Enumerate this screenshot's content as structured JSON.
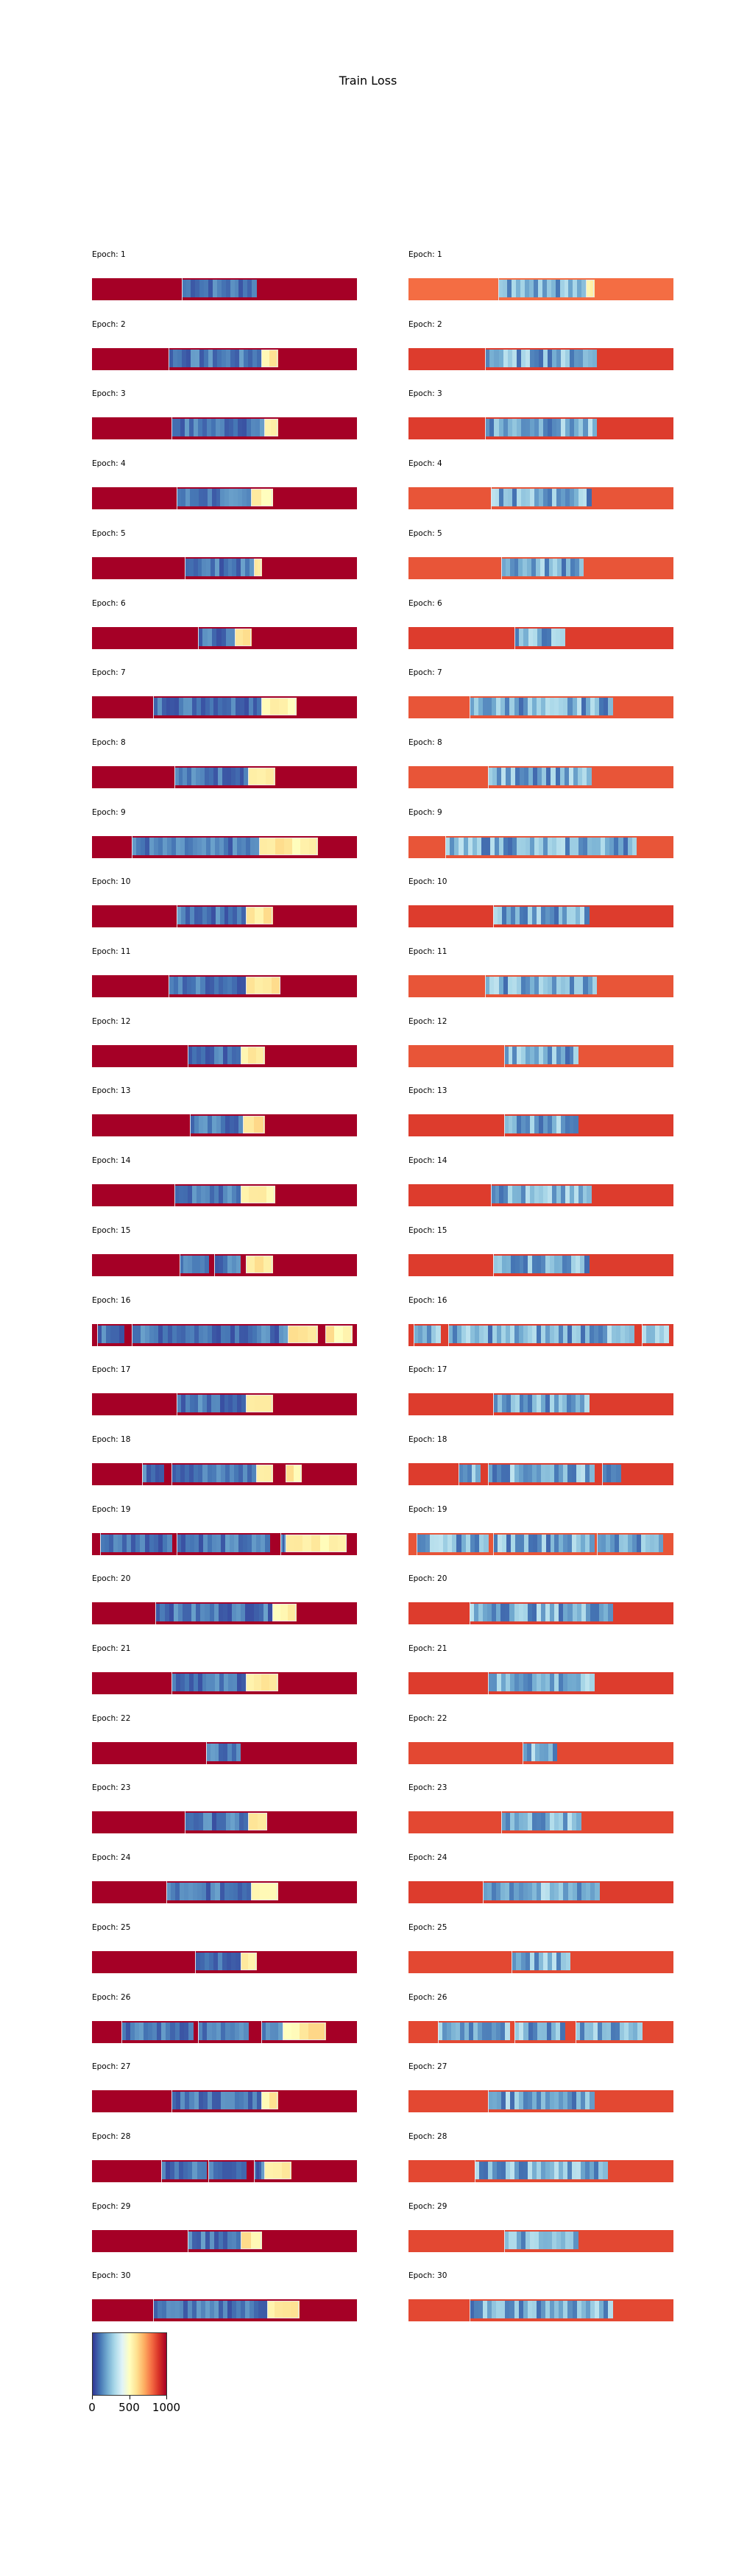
{
  "chart_data": {
    "type": "heatmap",
    "title": "Train Loss",
    "epoch_prefix": "Epoch: ",
    "epochs": [
      1,
      2,
      3,
      4,
      5,
      6,
      7,
      8,
      9,
      10,
      11,
      12,
      13,
      14,
      15,
      16,
      17,
      18,
      19,
      20,
      21,
      22,
      23,
      24,
      25,
      26,
      27,
      28,
      29,
      30
    ],
    "colormap": "RdYlBu_r",
    "colorbar": {
      "ticks": [
        0,
        500,
        1000
      ],
      "labels": [
        "0",
        "500",
        "1000"
      ],
      "range": [
        0,
        1000
      ]
    },
    "panels": [
      {
        "epochs": [
          {
            "epoch": 1,
            "background": 1000,
            "segments": [
              [
                0.34,
                0.62
              ]
            ],
            "high_segments": []
          },
          {
            "epoch": 2,
            "background": 1000,
            "segments": [
              [
                0.29,
                0.64
              ]
            ],
            "high_segments": [
              [
                0.64,
                0.7
              ]
            ]
          },
          {
            "epoch": 3,
            "background": 1000,
            "segments": [
              [
                0.3,
                0.65
              ]
            ],
            "high_segments": [
              [
                0.65,
                0.7
              ]
            ]
          },
          {
            "epoch": 4,
            "background": 1000,
            "segments": [
              [
                0.32,
                0.6
              ]
            ],
            "high_segments": [
              [
                0.6,
                0.68
              ]
            ]
          },
          {
            "epoch": 5,
            "background": 1000,
            "segments": [
              [
                0.35,
                0.61
              ]
            ],
            "high_segments": [
              [
                0.61,
                0.64
              ]
            ]
          },
          {
            "epoch": 6,
            "background": 1000,
            "segments": [
              [
                0.4,
                0.54
              ]
            ],
            "high_segments": [
              [
                0.54,
                0.6
              ]
            ]
          },
          {
            "epoch": 7,
            "background": 1000,
            "segments": [
              [
                0.23,
                0.64
              ]
            ],
            "high_segments": [
              [
                0.64,
                0.77
              ]
            ]
          },
          {
            "epoch": 8,
            "background": 1000,
            "segments": [
              [
                0.31,
                0.59
              ]
            ],
            "high_segments": [
              [
                0.59,
                0.69
              ]
            ]
          },
          {
            "epoch": 9,
            "background": 1000,
            "segments": [
              [
                0.15,
                0.63
              ]
            ],
            "high_segments": [
              [
                0.63,
                0.85
              ]
            ]
          },
          {
            "epoch": 10,
            "background": 1000,
            "segments": [
              [
                0.32,
                0.58
              ]
            ],
            "high_segments": [
              [
                0.58,
                0.68
              ]
            ]
          },
          {
            "epoch": 11,
            "background": 1000,
            "segments": [
              [
                0.29,
                0.58
              ]
            ],
            "high_segments": [
              [
                0.58,
                0.71
              ]
            ]
          },
          {
            "epoch": 12,
            "background": 1000,
            "segments": [
              [
                0.36,
                0.56
              ]
            ],
            "high_segments": [
              [
                0.56,
                0.65
              ]
            ]
          },
          {
            "epoch": 13,
            "background": 1000,
            "segments": [
              [
                0.37,
                0.57
              ]
            ],
            "high_segments": [
              [
                0.57,
                0.65
              ]
            ]
          },
          {
            "epoch": 14,
            "background": 1000,
            "segments": [
              [
                0.31,
                0.56
              ]
            ],
            "high_segments": [
              [
                0.56,
                0.69
              ]
            ]
          },
          {
            "epoch": 15,
            "background": 1000,
            "segments": [
              [
                0.33,
                0.44
              ],
              [
                0.46,
                0.56
              ]
            ],
            "high_segments": [
              [
                0.58,
                0.68
              ]
            ]
          },
          {
            "epoch": 16,
            "background": 1000,
            "segments": [
              [
                0.02,
                0.12
              ],
              [
                0.15,
                0.74
              ]
            ],
            "high_segments": [
              [
                0.74,
                0.85
              ],
              [
                0.88,
                0.98
              ]
            ]
          },
          {
            "epoch": 17,
            "background": 1000,
            "segments": [
              [
                0.32,
                0.58
              ]
            ],
            "high_segments": [
              [
                0.58,
                0.68
              ]
            ]
          },
          {
            "epoch": 18,
            "background": 1000,
            "segments": [
              [
                0.19,
                0.27
              ],
              [
                0.3,
                0.62
              ]
            ],
            "high_segments": [
              [
                0.62,
                0.68
              ],
              [
                0.73,
                0.79
              ]
            ]
          },
          {
            "epoch": 19,
            "background": 1000,
            "segments": [
              [
                0.03,
                0.3
              ],
              [
                0.32,
                0.67
              ],
              [
                0.71,
                0.73
              ]
            ],
            "high_segments": [
              [
                0.73,
                0.96
              ]
            ]
          },
          {
            "epoch": 20,
            "background": 1000,
            "segments": [
              [
                0.24,
                0.68
              ]
            ],
            "high_segments": [
              [
                0.68,
                0.77
              ]
            ]
          },
          {
            "epoch": 21,
            "background": 1000,
            "segments": [
              [
                0.3,
                0.58
              ]
            ],
            "high_segments": [
              [
                0.58,
                0.7
              ]
            ]
          },
          {
            "epoch": 22,
            "background": 1000,
            "segments": [
              [
                0.43,
                0.56
              ]
            ],
            "high_segments": []
          },
          {
            "epoch": 23,
            "background": 1000,
            "segments": [
              [
                0.35,
                0.59
              ]
            ],
            "high_segments": [
              [
                0.59,
                0.66
              ]
            ]
          },
          {
            "epoch": 24,
            "background": 1000,
            "segments": [
              [
                0.28,
                0.6
              ]
            ],
            "high_segments": [
              [
                0.6,
                0.7
              ]
            ]
          },
          {
            "epoch": 25,
            "background": 1000,
            "segments": [
              [
                0.39,
                0.56
              ]
            ],
            "high_segments": [
              [
                0.56,
                0.62
              ]
            ]
          },
          {
            "epoch": 26,
            "background": 1000,
            "segments": [
              [
                0.11,
                0.38
              ],
              [
                0.4,
                0.59
              ],
              [
                0.64,
                0.72
              ]
            ],
            "high_segments": [
              [
                0.72,
                0.88
              ]
            ]
          },
          {
            "epoch": 27,
            "background": 1000,
            "segments": [
              [
                0.3,
                0.64
              ]
            ],
            "high_segments": [
              [
                0.64,
                0.7
              ]
            ]
          },
          {
            "epoch": 28,
            "background": 1000,
            "segments": [
              [
                0.26,
                0.43
              ],
              [
                0.44,
                0.58
              ],
              [
                0.61,
                0.65
              ]
            ],
            "high_segments": [
              [
                0.65,
                0.75
              ]
            ]
          },
          {
            "epoch": 29,
            "background": 1000,
            "segments": [
              [
                0.36,
                0.56
              ]
            ],
            "high_segments": [
              [
                0.56,
                0.64
              ]
            ]
          },
          {
            "epoch": 30,
            "background": 1000,
            "segments": [
              [
                0.23,
                0.66
              ]
            ],
            "high_segments": [
              [
                0.66,
                0.78
              ]
            ]
          }
        ]
      },
      {
        "epochs": [
          {
            "epoch": 1,
            "background": 800,
            "segments": [
              [
                0.34,
                0.67
              ]
            ],
            "high_segments": [
              [
                0.67,
                0.7
              ]
            ]
          },
          {
            "epoch": 2,
            "background": 880,
            "segments": [
              [
                0.29,
                0.71
              ]
            ],
            "high_segments": []
          },
          {
            "epoch": 3,
            "background": 880,
            "segments": [
              [
                0.29,
                0.71
              ]
            ],
            "high_segments": []
          },
          {
            "epoch": 4,
            "background": 840,
            "segments": [
              [
                0.31,
                0.69
              ]
            ],
            "high_segments": []
          },
          {
            "epoch": 5,
            "background": 840,
            "segments": [
              [
                0.35,
                0.66
              ]
            ],
            "high_segments": []
          },
          {
            "epoch": 6,
            "background": 880,
            "segments": [
              [
                0.4,
                0.59
              ]
            ],
            "high_segments": []
          },
          {
            "epoch": 7,
            "background": 840,
            "segments": [
              [
                0.23,
                0.77
              ]
            ],
            "high_segments": []
          },
          {
            "epoch": 8,
            "background": 840,
            "segments": [
              [
                0.3,
                0.69
              ]
            ],
            "high_segments": []
          },
          {
            "epoch": 9,
            "background": 840,
            "segments": [
              [
                0.14,
                0.86
              ]
            ],
            "high_segments": []
          },
          {
            "epoch": 10,
            "background": 880,
            "segments": [
              [
                0.32,
                0.68
              ]
            ],
            "high_segments": []
          },
          {
            "epoch": 11,
            "background": 840,
            "segments": [
              [
                0.29,
                0.71
              ]
            ],
            "high_segments": []
          },
          {
            "epoch": 12,
            "background": 840,
            "segments": [
              [
                0.36,
                0.64
              ]
            ],
            "high_segments": []
          },
          {
            "epoch": 13,
            "background": 880,
            "segments": [
              [
                0.36,
                0.64
              ]
            ],
            "high_segments": []
          },
          {
            "epoch": 14,
            "background": 880,
            "segments": [
              [
                0.31,
                0.69
              ]
            ],
            "high_segments": []
          },
          {
            "epoch": 15,
            "background": 880,
            "segments": [
              [
                0.32,
                0.68
              ]
            ],
            "high_segments": []
          },
          {
            "epoch": 16,
            "background": 880,
            "segments": [
              [
                0.02,
                0.12
              ],
              [
                0.15,
                0.85
              ],
              [
                0.88,
                0.98
              ]
            ],
            "high_segments": []
          },
          {
            "epoch": 17,
            "background": 880,
            "segments": [
              [
                0.32,
                0.68
              ]
            ],
            "high_segments": []
          },
          {
            "epoch": 18,
            "background": 880,
            "segments": [
              [
                0.19,
                0.27
              ],
              [
                0.3,
                0.7
              ],
              [
                0.73,
                0.8
              ]
            ],
            "high_segments": []
          },
          {
            "epoch": 19,
            "background": 840,
            "segments": [
              [
                0.03,
                0.3
              ],
              [
                0.32,
                0.7
              ],
              [
                0.71,
                0.96
              ]
            ],
            "high_segments": []
          },
          {
            "epoch": 20,
            "background": 880,
            "segments": [
              [
                0.23,
                0.77
              ]
            ],
            "high_segments": []
          },
          {
            "epoch": 21,
            "background": 880,
            "segments": [
              [
                0.3,
                0.7
              ]
            ],
            "high_segments": []
          },
          {
            "epoch": 22,
            "background": 860,
            "segments": [
              [
                0.43,
                0.56
              ]
            ],
            "high_segments": []
          },
          {
            "epoch": 23,
            "background": 860,
            "segments": [
              [
                0.35,
                0.65
              ]
            ],
            "high_segments": []
          },
          {
            "epoch": 24,
            "background": 880,
            "segments": [
              [
                0.28,
                0.72
              ]
            ],
            "high_segments": []
          },
          {
            "epoch": 25,
            "background": 860,
            "segments": [
              [
                0.39,
                0.61
              ]
            ],
            "high_segments": []
          },
          {
            "epoch": 26,
            "background": 860,
            "segments": [
              [
                0.11,
                0.38
              ],
              [
                0.4,
                0.59
              ],
              [
                0.63,
                0.88
              ]
            ],
            "high_segments": []
          },
          {
            "epoch": 27,
            "background": 860,
            "segments": [
              [
                0.3,
                0.7
              ]
            ],
            "high_segments": []
          },
          {
            "epoch": 28,
            "background": 860,
            "segments": [
              [
                0.25,
                0.75
              ]
            ],
            "high_segments": []
          },
          {
            "epoch": 29,
            "background": 860,
            "segments": [
              [
                0.36,
                0.64
              ]
            ],
            "high_segments": []
          },
          {
            "epoch": 30,
            "background": 860,
            "segments": [
              [
                0.23,
                0.77
              ]
            ],
            "high_segments": []
          }
        ]
      }
    ]
  }
}
